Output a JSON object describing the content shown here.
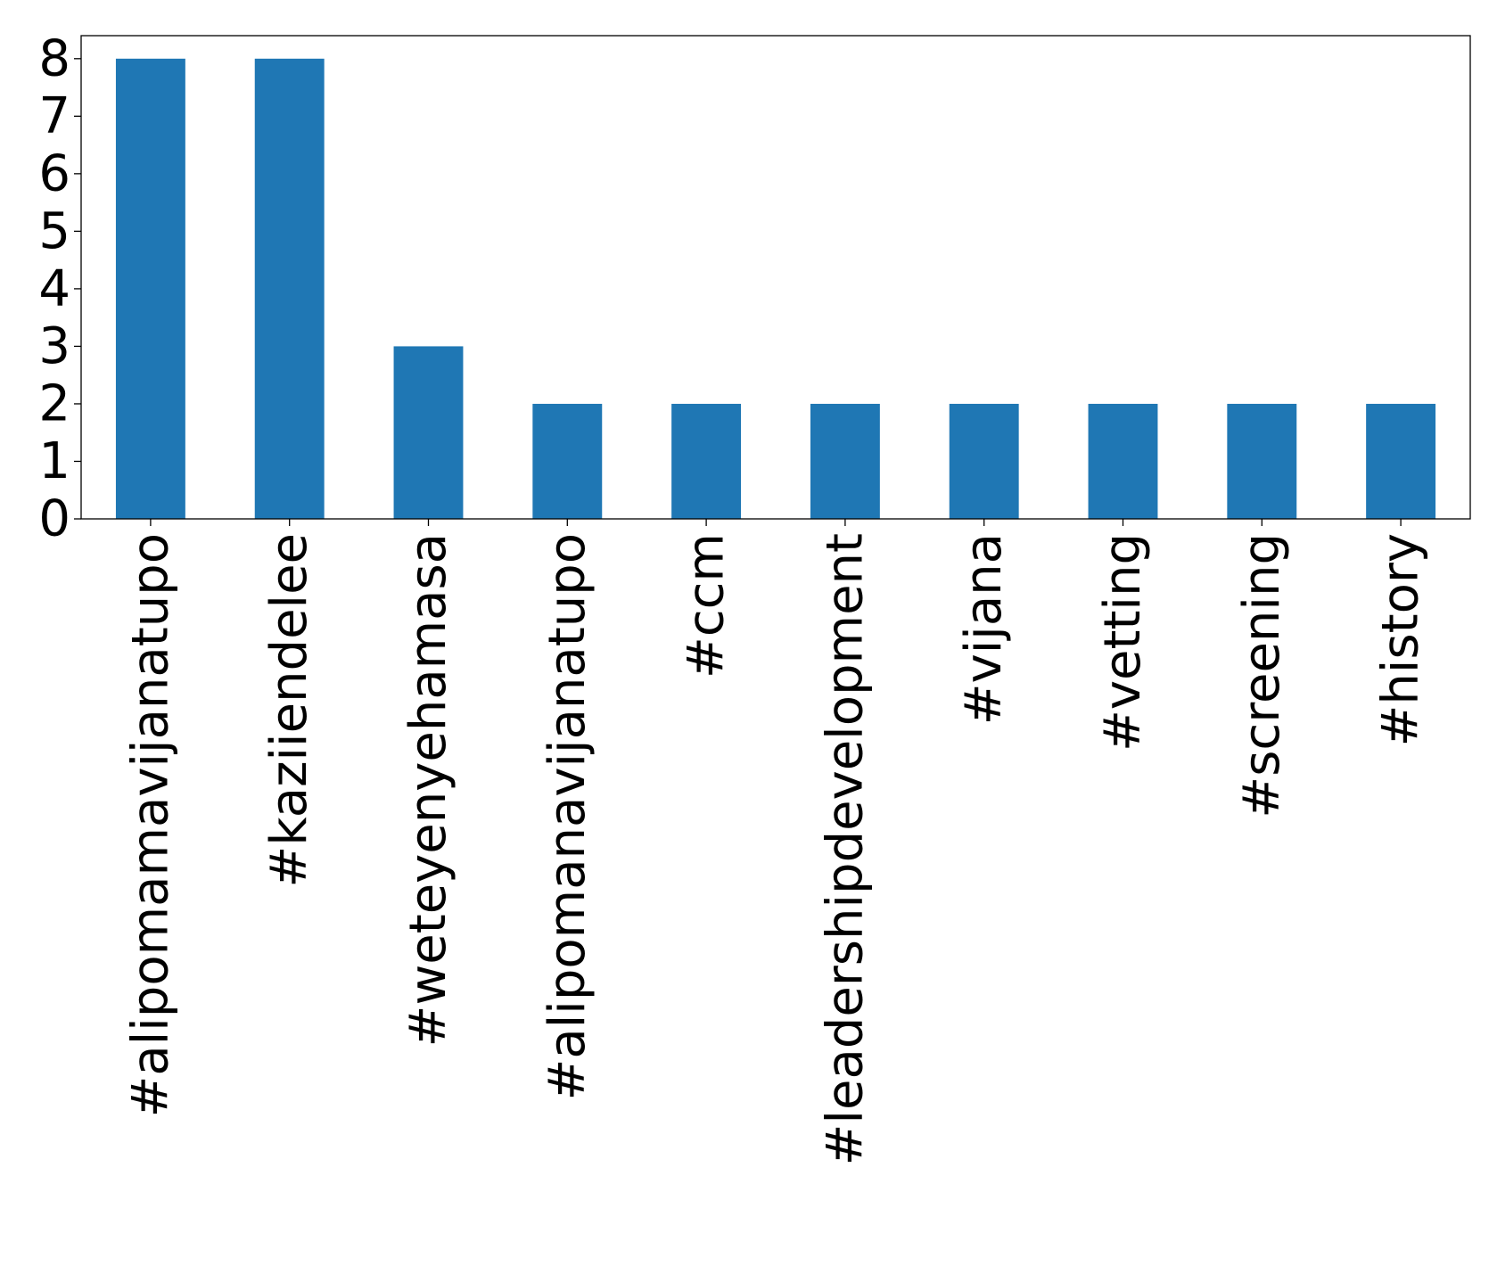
{
  "chart_data": {
    "type": "bar",
    "title": "",
    "xlabel": "",
    "ylabel": "",
    "categories": [
      "#alipomamavijanatupo",
      "#kaziiendelee",
      "#weteyenyehamasa",
      "#alipomanavijanatupo",
      "#ccm",
      "#leadershipdevelopment",
      "#vijana",
      "#vetting",
      "#screening",
      "#history"
    ],
    "values": [
      8,
      8,
      3,
      2,
      2,
      2,
      2,
      2,
      2,
      2
    ],
    "ylim": [
      0,
      8.4
    ],
    "yticks": [
      0,
      1,
      2,
      3,
      4,
      5,
      6,
      7,
      8
    ],
    "grid": false,
    "legend": "none",
    "colors": {
      "bar": "#1f77b4",
      "axis": "#000000",
      "text": "#000000"
    }
  }
}
